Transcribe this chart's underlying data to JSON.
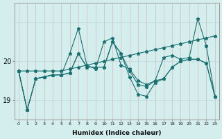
{
  "xlabel": "Humidex (Indice chaleur)",
  "bg_color": "#d4eeee",
  "grid_color": "#c0d8d8",
  "vgrid_color": "#d4b8b8",
  "line_color": "#1a7070",
  "hours": [
    0,
    1,
    2,
    3,
    4,
    5,
    6,
    7,
    8,
    9,
    10,
    11,
    12,
    13,
    14,
    15,
    16,
    17,
    18,
    19,
    20,
    21,
    22,
    23
  ],
  "series1": [
    19.75,
    19.75,
    19.75,
    19.75,
    19.75,
    19.75,
    19.8,
    19.85,
    19.9,
    19.95,
    20.0,
    20.05,
    20.1,
    20.15,
    20.2,
    20.25,
    20.3,
    20.35,
    20.4,
    20.45,
    20.5,
    20.55,
    20.6,
    20.65
  ],
  "series2": [
    19.75,
    18.75,
    19.55,
    19.6,
    19.65,
    19.65,
    20.2,
    20.85,
    19.9,
    19.8,
    20.5,
    20.6,
    19.9,
    19.8,
    19.5,
    19.4,
    19.5,
    20.1,
    20.15,
    20.05,
    20.1,
    21.1,
    20.4,
    19.1
  ],
  "series3": [
    19.75,
    18.75,
    19.55,
    19.6,
    19.65,
    19.65,
    19.7,
    20.2,
    19.85,
    19.85,
    19.85,
    20.5,
    20.2,
    19.75,
    19.4,
    19.35,
    19.5,
    19.55,
    19.85,
    20.0,
    20.05,
    20.05,
    19.95,
    19.1
  ],
  "series4": [
    19.75,
    18.75,
    19.55,
    19.6,
    19.65,
    19.65,
    19.7,
    20.2,
    19.85,
    19.85,
    19.85,
    20.5,
    20.2,
    19.6,
    19.15,
    19.1,
    19.45,
    19.55,
    19.85,
    20.0,
    20.05,
    20.05,
    19.95,
    19.1
  ],
  "ylim": [
    18.5,
    21.5
  ],
  "yticks": [
    19,
    20
  ],
  "xlim": [
    -0.5,
    23.5
  ]
}
